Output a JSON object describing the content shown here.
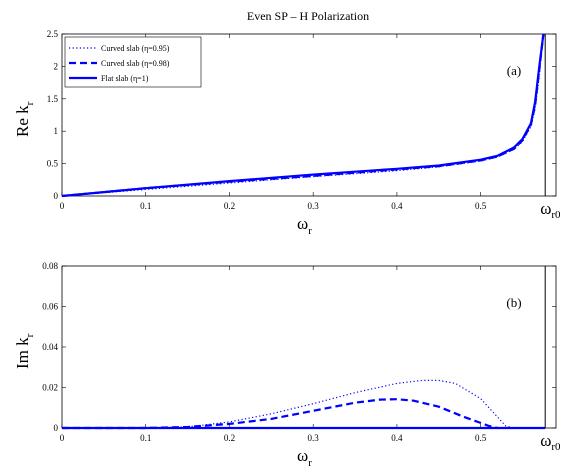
{
  "chart_data": [
    {
      "type": "line",
      "panel": "a",
      "title": "Even SP – H Polarization",
      "xlabel": "ω",
      "xlabel_sub": "r",
      "ylabel": "Re k",
      "ylabel_sub": "r",
      "annotation": "(a)",
      "end_marker_label": "ω",
      "end_marker_sub": "r0",
      "end_marker_x": 0.5771,
      "xlim": [
        0,
        0.59
      ],
      "ylim": [
        0,
        2.5
      ],
      "xticks": [
        "0",
        "0.1",
        "0.2",
        "0.3",
        "0.4",
        "0.5"
      ],
      "xtick_values": [
        0,
        0.1,
        0.2,
        0.3,
        0.4,
        0.5
      ],
      "yticks": [
        "0",
        "0.5",
        "1",
        "1.5",
        "2",
        "2.5"
      ],
      "ytick_values": [
        0,
        0.5,
        1,
        1.5,
        2,
        2.5
      ],
      "legend_position": "top-left",
      "grid": false,
      "series": [
        {
          "name": "Curved slab (η=0.95)",
          "style": "dotted",
          "color": "#0000ff",
          "x": [
            0,
            0.1,
            0.2,
            0.3,
            0.4,
            0.45,
            0.5,
            0.52,
            0.54,
            0.55,
            0.56,
            0.565,
            0.57,
            0.575
          ],
          "y": [
            0,
            0.1,
            0.2,
            0.3,
            0.39,
            0.45,
            0.54,
            0.6,
            0.72,
            0.84,
            1.07,
            1.35,
            1.85,
            2.5
          ]
        },
        {
          "name": "Curved slab (η=0.98)",
          "style": "dashed",
          "color": "#0000ff",
          "x": [
            0,
            0.1,
            0.2,
            0.3,
            0.4,
            0.45,
            0.5,
            0.52,
            0.54,
            0.55,
            0.56,
            0.565,
            0.57,
            0.575
          ],
          "y": [
            0,
            0.12,
            0.22,
            0.31,
            0.41,
            0.46,
            0.55,
            0.61,
            0.73,
            0.86,
            1.1,
            1.4,
            1.95,
            2.5
          ]
        },
        {
          "name": "Flat slab (η=1)",
          "style": "solid",
          "color": "#0000ff",
          "x": [
            0,
            0.1,
            0.2,
            0.3,
            0.4,
            0.45,
            0.5,
            0.52,
            0.54,
            0.55,
            0.56,
            0.565,
            0.57,
            0.575
          ],
          "y": [
            0,
            0.12,
            0.23,
            0.33,
            0.42,
            0.47,
            0.56,
            0.62,
            0.75,
            0.88,
            1.12,
            1.45,
            2.0,
            2.5
          ]
        }
      ]
    },
    {
      "type": "line",
      "panel": "b",
      "xlabel": "ω",
      "xlabel_sub": "r",
      "ylabel": "Im k",
      "ylabel_sub": "r",
      "annotation": "(b)",
      "end_marker_label": "ω",
      "end_marker_sub": "r0",
      "end_marker_x": 0.5771,
      "xlim": [
        0,
        0.59
      ],
      "ylim": [
        0,
        0.08
      ],
      "xticks": [
        "0",
        "0.1",
        "0.2",
        "0.3",
        "0.4",
        "0.5"
      ],
      "xtick_values": [
        0,
        0.1,
        0.2,
        0.3,
        0.4,
        0.5
      ],
      "yticks": [
        "0",
        "0.02",
        "0.04",
        "0.06",
        "0.08"
      ],
      "ytick_values": [
        0,
        0.02,
        0.04,
        0.06,
        0.08
      ],
      "grid": false,
      "series": [
        {
          "name": "Curved slab (η=0.95)",
          "style": "dotted",
          "color": "#0000ff",
          "x": [
            0,
            0.1,
            0.15,
            0.2,
            0.25,
            0.3,
            0.35,
            0.4,
            0.43,
            0.45,
            0.47,
            0.5,
            0.52,
            0.53,
            0.54
          ],
          "y": [
            0,
            0,
            0.0005,
            0.003,
            0.007,
            0.012,
            0.0175,
            0.022,
            0.0235,
            0.0235,
            0.022,
            0.0145,
            0.0055,
            0.001,
            0
          ]
        },
        {
          "name": "Curved slab (η=0.98)",
          "style": "dashed",
          "color": "#0000ff",
          "x": [
            0,
            0.1,
            0.15,
            0.2,
            0.25,
            0.3,
            0.35,
            0.38,
            0.4,
            0.42,
            0.45,
            0.48,
            0.5,
            0.51,
            0.52
          ],
          "y": [
            0,
            0,
            0.0005,
            0.002,
            0.0045,
            0.0085,
            0.0125,
            0.014,
            0.0142,
            0.0135,
            0.0105,
            0.0055,
            0.0025,
            0.001,
            0
          ]
        },
        {
          "name": "Flat slab (η=1)",
          "style": "solid",
          "color": "#0000ff",
          "x": [
            0,
            0.5771
          ],
          "y": [
            0,
            0
          ]
        }
      ]
    }
  ]
}
